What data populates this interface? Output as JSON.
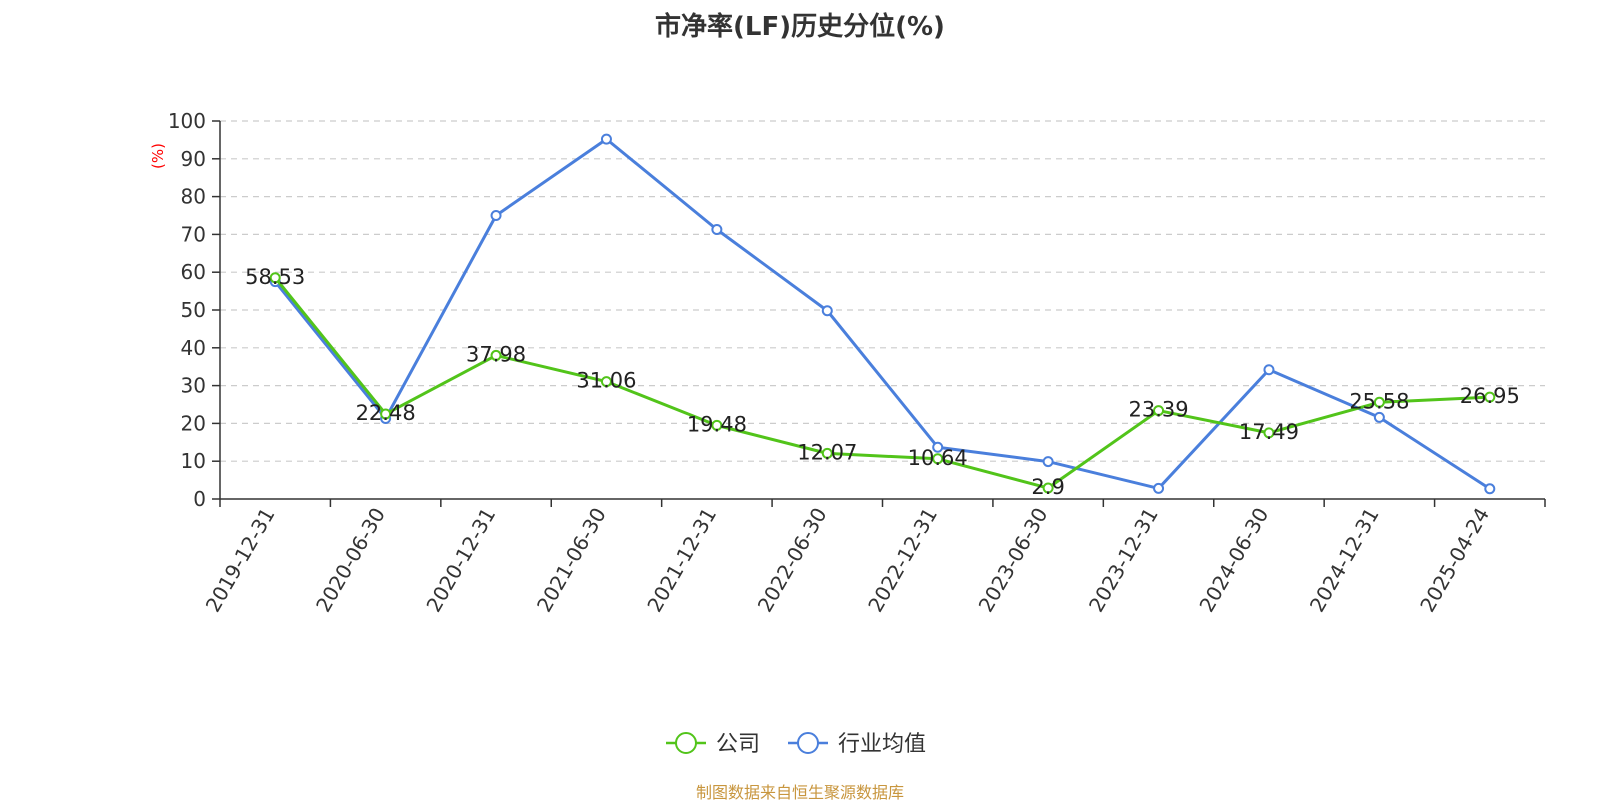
{
  "chart_data": {
    "type": "line",
    "title": "市净率(LF)历史分位(%)",
    "ylabel": "(%)",
    "ylim": [
      0,
      100
    ],
    "yticks": [
      0,
      10,
      20,
      30,
      40,
      50,
      60,
      70,
      80,
      90,
      100
    ],
    "grid": true,
    "legend_position": "bottom-center",
    "categories": [
      "2019-12-31",
      "2020-06-30",
      "2020-12-31",
      "2021-06-30",
      "2021-12-31",
      "2022-06-30",
      "2022-12-31",
      "2023-06-30",
      "2023-12-31",
      "2024-06-30",
      "2024-12-31",
      "2025-04-24"
    ],
    "series": [
      {
        "name": "公司",
        "color": "#52c41a",
        "show_labels": true,
        "values": [
          58.53,
          22.48,
          37.98,
          31.06,
          19.48,
          12.07,
          10.64,
          2.9,
          23.39,
          17.49,
          25.58,
          26.95
        ]
      },
      {
        "name": "行业均值",
        "color": "#4a7fdc",
        "show_labels": false,
        "values": [
          57.5,
          21.3,
          75.0,
          95.2,
          71.3,
          49.8,
          13.7,
          9.9,
          2.8,
          34.2,
          21.6,
          2.7
        ]
      }
    ]
  },
  "source": "制图数据来自恒生聚源数据库"
}
